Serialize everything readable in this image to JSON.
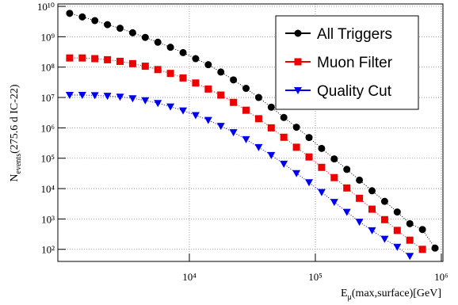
{
  "chart_data": {
    "type": "scatter",
    "xlabel": [
      "E",
      "μ",
      "(max,surface)[GeV]"
    ],
    "ylabel": [
      "N",
      "events",
      "(275.6 d IC-22)"
    ],
    "log_x": true,
    "log_y": true,
    "grid": true,
    "legend": "upper right",
    "xlim": [
      904,
      1030000
    ],
    "ylim": [
      40,
      12000000000
    ],
    "xticks": [
      {
        "value": 10000,
        "label": "10⁴"
      },
      {
        "value": 100000,
        "label": "10⁵"
      },
      {
        "value": 1000000,
        "label": "10⁶"
      }
    ],
    "yticks": [
      {
        "value": 100,
        "label": "10²"
      },
      {
        "value": 1000,
        "label": "10³"
      },
      {
        "value": 10000,
        "label": "10⁴"
      },
      {
        "value": 100000,
        "label": "10⁵"
      },
      {
        "value": 1000000,
        "label": "10⁶"
      },
      {
        "value": 10000000,
        "label": "10⁷"
      },
      {
        "value": 100000000,
        "label": "10⁸"
      },
      {
        "value": 1000000000,
        "label": "10⁹"
      },
      {
        "value": 10000000000,
        "label": "10¹⁰"
      }
    ],
    "x": [
      1122,
      1413,
      1778,
      2239,
      2818,
      3548,
      4467,
      5623,
      7079,
      8913,
      11220,
      14125,
      17783,
      22387,
      28184,
      35481,
      44668,
      56234,
      70795,
      89125,
      112202,
      141254,
      177828,
      223872,
      281838,
      354813,
      446684,
      562341,
      707946,
      891251
    ],
    "series": [
      {
        "name": "All Triggers",
        "color": "#000000",
        "marker": "circle",
        "values": [
          5900000000.0,
          4500000000.0,
          3400000000.0,
          2500000000.0,
          1900000000.0,
          1350000000.0,
          950000000.0,
          660000000.0,
          450000000.0,
          300000000.0,
          190000000.0,
          120000000.0,
          69000000.0,
          38000000.0,
          20000000.0,
          10000000.0,
          4800000.0,
          2200000.0,
          1050000.0,
          480000.0,
          210000.0,
          95000.0,
          43000.0,
          19000.0,
          8500.0,
          3800.0,
          1700.0,
          700.0,
          450.0,
          110.0
        ]
      },
      {
        "name": "Muon Filter",
        "color": "#ee0000",
        "marker": "square",
        "values": [
          200000000.0,
          200000000.0,
          190000000.0,
          175000000.0,
          155000000.0,
          130000000.0,
          107000000.0,
          83000000.0,
          62000000.0,
          44000000.0,
          30000000.0,
          19000000.0,
          12000000.0,
          6900000.0,
          3800000.0,
          2000000.0,
          1000000.0,
          490000.0,
          230000.0,
          110000.0,
          50000.0,
          23000.0,
          10500.0,
          4800.0,
          2100.0,
          950.0,
          420.0,
          200.0,
          100.0,
          null
        ]
      },
      {
        "name": "Quality Cut",
        "color": "#0000ee",
        "marker": "triangle-down",
        "values": [
          12000000.0,
          12000000.0,
          11700000.0,
          11200000.0,
          10500000.0,
          9300000.0,
          8000000.0,
          6500000.0,
          5000000.0,
          3700000.0,
          2600000.0,
          1800000.0,
          1150000.0,
          710000.0,
          420000.0,
          230000.0,
          126000.0,
          65000.0,
          32000.0,
          16000.0,
          7600.0,
          3600.0,
          1700.0,
          800.0,
          420.0,
          220.0,
          120.0,
          60.0,
          null,
          null
        ]
      }
    ]
  }
}
